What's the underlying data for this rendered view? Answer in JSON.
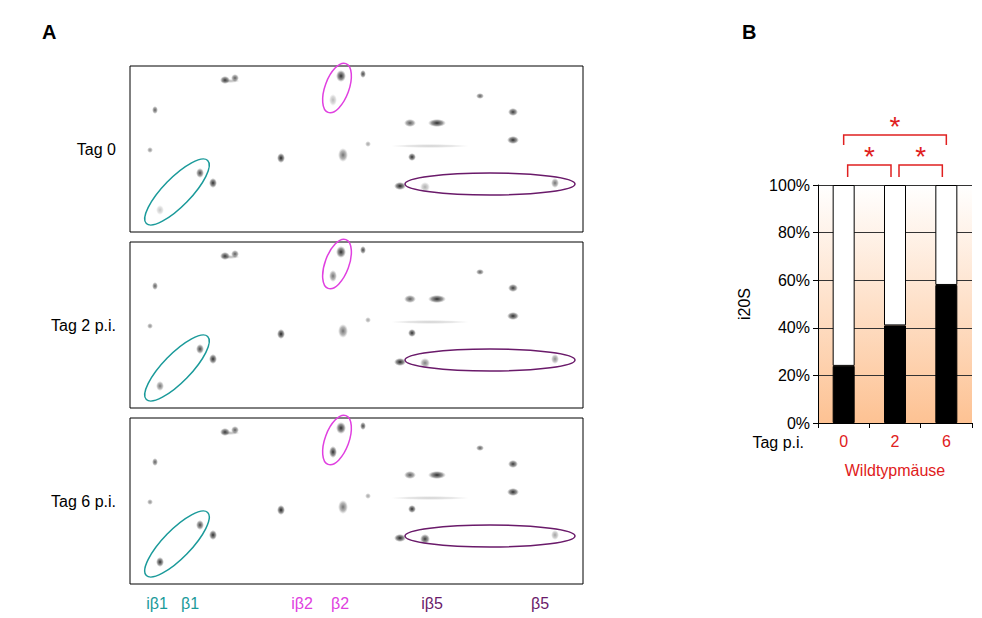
{
  "figure": {
    "letter": "A",
    "rows": [
      "Tag 0",
      "Tag 2 p.i.",
      "Tag 6 p.i."
    ],
    "spot_labels": [
      {
        "text": "iβ1",
        "color": "#1a9a9a"
      },
      {
        "text": "β1",
        "color": "#1a9a9a"
      },
      {
        "text": "iβ2",
        "color": "#e040e0"
      },
      {
        "text": "β2",
        "color": "#e040e0"
      },
      {
        "text": "iβ5",
        "color": "#6a1a6a"
      },
      {
        "text": "β5",
        "color": "#6a1a6a"
      }
    ]
  },
  "chart_data": {
    "type": "bar",
    "panel_label": "B",
    "stacked": true,
    "grid": true,
    "categories": [
      "0",
      "2",
      "6"
    ],
    "xlabel": "Tag p.i.",
    "x_group_label": "Wildtypmäuse",
    "ylabel": "i20S",
    "ylim": [
      0,
      100
    ],
    "yticks": [
      {
        "value": 0,
        "label": "0%"
      },
      {
        "value": 20,
        "label": "20%"
      },
      {
        "value": 40,
        "label": "40%"
      },
      {
        "value": 60,
        "label": "60%"
      },
      {
        "value": 80,
        "label": "80%"
      },
      {
        "value": 100,
        "label": "100%"
      }
    ],
    "series": [
      {
        "color": "#000000",
        "values": [
          24,
          41,
          58
        ]
      },
      {
        "color": "#ffffff",
        "values": [
          76,
          59,
          42
        ]
      }
    ],
    "significance": [
      {
        "from": "0",
        "to": "2",
        "label": "*"
      },
      {
        "from": "2",
        "to": "6",
        "label": "*"
      },
      {
        "from": "0",
        "to": "6",
        "label": "*"
      }
    ]
  }
}
